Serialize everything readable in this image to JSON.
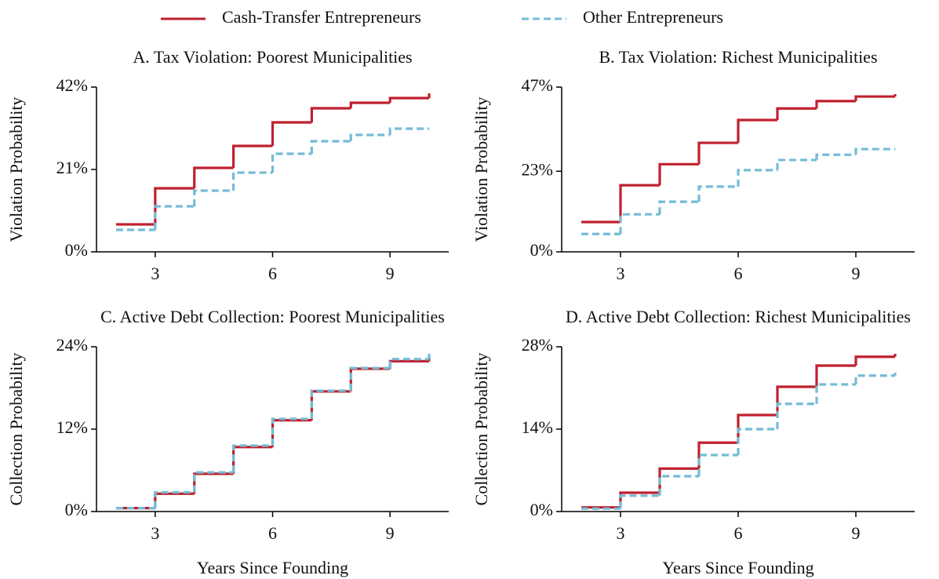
{
  "chart_data": [
    {
      "type": "line",
      "drawstyle": "steps-post",
      "title": "A. Tax Violation: Poorest Municipalities",
      "ylabel": "Violation Probability",
      "x": [
        2,
        3,
        4,
        5,
        6,
        7,
        8,
        9,
        10
      ],
      "xlim": [
        1.5,
        10.5
      ],
      "xticks": [
        3,
        6,
        9
      ],
      "ylim": [
        0,
        42
      ],
      "yticks": [
        {
          "value": 0,
          "label": "0%"
        },
        {
          "value": 21,
          "label": "21%"
        },
        {
          "value": 42,
          "label": "42%"
        }
      ],
      "series": [
        {
          "name": "Cash-Transfer Entrepreneurs",
          "color": "#c0202f",
          "linestyle": "solid",
          "values": [
            7,
            16.2,
            21.4,
            27,
            33,
            36.6,
            38,
            39.2,
            40.4
          ]
        },
        {
          "name": "Other Entrepreneurs",
          "color": "#74bcd6",
          "linestyle": "dashed",
          "values": [
            5.6,
            11.6,
            15.6,
            20.2,
            25,
            28.2,
            29.8,
            31.4,
            31.4
          ]
        }
      ]
    },
    {
      "type": "line",
      "drawstyle": "steps-post",
      "title": "B. Tax Violation: Richest Municipalities",
      "ylabel": "Violation Probability",
      "x": [
        2,
        3,
        4,
        5,
        6,
        7,
        8,
        9,
        10
      ],
      "xlim": [
        1.5,
        10.5
      ],
      "xticks": [
        3,
        6,
        9
      ],
      "ylim": [
        0,
        47
      ],
      "yticks": [
        {
          "value": 0,
          "label": "0%"
        },
        {
          "value": 23,
          "label": "23%"
        },
        {
          "value": 47,
          "label": "47%"
        }
      ],
      "series": [
        {
          "color": "#c0202f",
          "linestyle": "solid",
          "values": [
            8.5,
            19,
            25,
            31.1,
            37.6,
            40.9,
            43,
            44.3,
            45
          ]
        },
        {
          "color": "#74bcd6",
          "linestyle": "dashed",
          "values": [
            5.1,
            10.7,
            14.3,
            18.6,
            23.3,
            26.2,
            27.7,
            29.3,
            29.3
          ]
        }
      ]
    },
    {
      "type": "line",
      "drawstyle": "steps-post",
      "title": "C. Active Debt Collection: Poorest Municipalities",
      "ylabel": "Collection Probability",
      "xlabel": "Years Since Founding",
      "x": [
        2,
        3,
        4,
        5,
        6,
        7,
        8,
        9,
        10
      ],
      "xlim": [
        1.5,
        10.5
      ],
      "xticks": [
        3,
        6,
        9
      ],
      "ylim": [
        0,
        24
      ],
      "yticks": [
        {
          "value": 0,
          "label": "0%"
        },
        {
          "value": 12,
          "label": "12%"
        },
        {
          "value": 24,
          "label": "24%"
        }
      ],
      "series": [
        {
          "color": "#c0202f",
          "linestyle": "solid",
          "values": [
            0.5,
            2.6,
            5.5,
            9.4,
            13.3,
            17.5,
            20.8,
            21.9,
            22.6
          ]
        },
        {
          "color": "#74bcd6",
          "linestyle": "dashed",
          "values": [
            0.5,
            2.8,
            5.7,
            9.6,
            13.5,
            17.6,
            20.9,
            22.2,
            23
          ]
        }
      ]
    },
    {
      "type": "line",
      "drawstyle": "steps-post",
      "title": "D. Active Debt Collection: Richest Municipalities",
      "ylabel": "Collection Probability",
      "xlabel": "Years Since Founding",
      "x": [
        2,
        3,
        4,
        5,
        6,
        7,
        8,
        9,
        10
      ],
      "xlim": [
        1.5,
        10.5
      ],
      "xticks": [
        3,
        6,
        9
      ],
      "ylim": [
        0,
        28
      ],
      "yticks": [
        {
          "value": 0,
          "label": "0%"
        },
        {
          "value": 14,
          "label": "14%"
        },
        {
          "value": 28,
          "label": "28%"
        }
      ],
      "series": [
        {
          "color": "#c0202f",
          "linestyle": "solid",
          "values": [
            0.7,
            3.2,
            7.3,
            11.7,
            16.4,
            21.2,
            24.8,
            26.3,
            26.8
          ]
        },
        {
          "color": "#74bcd6",
          "linestyle": "dashed",
          "values": [
            0.5,
            2.7,
            6,
            9.6,
            14,
            18.3,
            21.6,
            23.1,
            23.6
          ]
        }
      ]
    }
  ]
}
